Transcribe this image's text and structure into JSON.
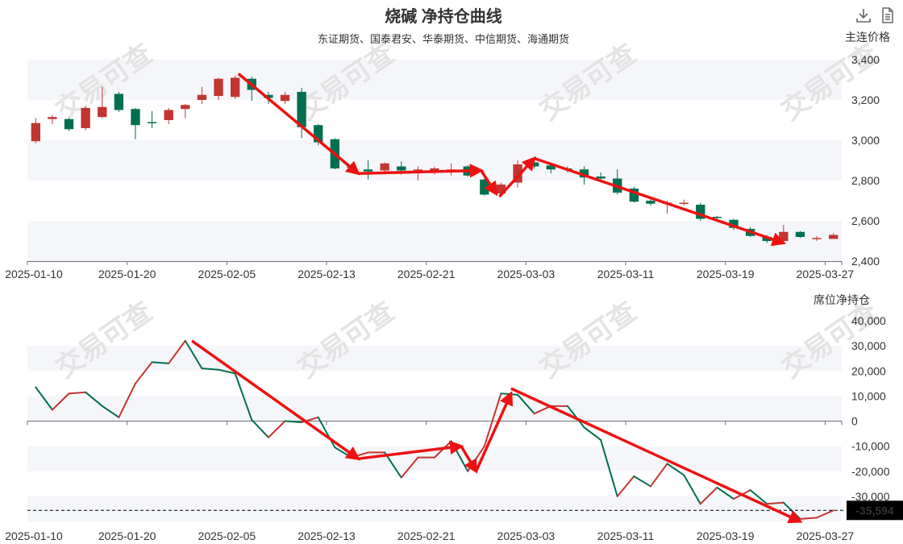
{
  "title": "烧碱 净持仓曲线",
  "subtitle": "东证期货、国泰君安、华泰期货、中信期货、海通期货",
  "toolbar": {
    "download_icon": "download-icon",
    "data_view_icon": "document-icon"
  },
  "watermark": "交易可查",
  "colors": {
    "up": "#c23531",
    "down": "#006f4f",
    "arrow": "#ee1111",
    "band": "#f5f6fa",
    "axis": "#6e7079",
    "netline_up": "#c23531",
    "netline_down": "#006f4f"
  },
  "chart_data": [
    {
      "type": "candlestick",
      "ylabel": "主连价格",
      "ylim": [
        2400,
        3400
      ],
      "yticks": [
        "2,400",
        "2,600",
        "2,800",
        "3,000",
        "3,200",
        "3,400"
      ],
      "x_tick_labels": [
        "2025-01-10",
        "2025-01-20",
        "2025-02-05",
        "2025-02-13",
        "2025-02-21",
        "2025-03-03",
        "2025-03-11",
        "2025-03-19",
        "2025-03-27"
      ],
      "x_tick_index": [
        0,
        6,
        12,
        18,
        24,
        30,
        36,
        42,
        48
      ],
      "dates": [
        "2025-01-10",
        "2025-01-13",
        "2025-01-14",
        "2025-01-15",
        "2025-01-16",
        "2025-01-17",
        "2025-01-20",
        "2025-01-21",
        "2025-01-22",
        "2025-01-23",
        "2025-01-24",
        "2025-01-27",
        "2025-02-05",
        "2025-02-06",
        "2025-02-07",
        "2025-02-10",
        "2025-02-11",
        "2025-02-12",
        "2025-02-13",
        "2025-02-14",
        "2025-02-17",
        "2025-02-18",
        "2025-02-19",
        "2025-02-20",
        "2025-02-21",
        "2025-02-24",
        "2025-02-25",
        "2025-02-26",
        "2025-02-27",
        "2025-02-28",
        "2025-03-03",
        "2025-03-04",
        "2025-03-05",
        "2025-03-06",
        "2025-03-07",
        "2025-03-10",
        "2025-03-11",
        "2025-03-12",
        "2025-03-13",
        "2025-03-14",
        "2025-03-17",
        "2025-03-18",
        "2025-03-19",
        "2025-03-20",
        "2025-03-21",
        "2025-03-24",
        "2025-03-25",
        "2025-03-26",
        "2025-03-27"
      ],
      "ohlc": [
        [
          2995,
          3085,
          2985,
          3110
        ],
        [
          3105,
          3115,
          3080,
          3125
        ],
        [
          3105,
          3055,
          3045,
          3110
        ],
        [
          3060,
          3160,
          3050,
          3170
        ],
        [
          3115,
          3165,
          3110,
          3265
        ],
        [
          3230,
          3150,
          3140,
          3240
        ],
        [
          3155,
          3075,
          3005,
          3160
        ],
        [
          3090,
          3085,
          3060,
          3145
        ],
        [
          3100,
          3150,
          3080,
          3160
        ],
        [
          3155,
          3175,
          3110,
          3180
        ],
        [
          3200,
          3225,
          3180,
          3265
        ],
        [
          3220,
          3305,
          3200,
          3310
        ],
        [
          3215,
          3310,
          3205,
          3320
        ],
        [
          3305,
          3250,
          3195,
          3315
        ],
        [
          3225,
          3210,
          3180,
          3240
        ],
        [
          3195,
          3225,
          3180,
          3240
        ],
        [
          3240,
          3065,
          3010,
          3260
        ],
        [
          3075,
          2990,
          2975,
          3080
        ],
        [
          3005,
          2860,
          2855,
          3010
        ],
        [
          2870,
          2865,
          2845,
          2885
        ],
        [
          2855,
          2845,
          2805,
          2900
        ],
        [
          2850,
          2885,
          2840,
          2890
        ],
        [
          2870,
          2850,
          2830,
          2895
        ],
        [
          2850,
          2855,
          2800,
          2870
        ],
        [
          2850,
          2860,
          2830,
          2870
        ],
        [
          2850,
          2855,
          2825,
          2885
        ],
        [
          2870,
          2825,
          2820,
          2875
        ],
        [
          2805,
          2730,
          2725,
          2810
        ],
        [
          2735,
          2780,
          2730,
          2790
        ],
        [
          2790,
          2880,
          2765,
          2900
        ],
        [
          2890,
          2870,
          2860,
          2900
        ],
        [
          2875,
          2855,
          2835,
          2890
        ],
        [
          2860,
          2855,
          2840,
          2870
        ],
        [
          2855,
          2815,
          2780,
          2870
        ],
        [
          2820,
          2810,
          2800,
          2840
        ],
        [
          2810,
          2740,
          2730,
          2855
        ],
        [
          2760,
          2695,
          2690,
          2770
        ],
        [
          2700,
          2685,
          2675,
          2710
        ],
        [
          2685,
          2690,
          2635,
          2700
        ],
        [
          2690,
          2690,
          2675,
          2705
        ],
        [
          2680,
          2610,
          2600,
          2690
        ],
        [
          2620,
          2615,
          2610,
          2625
        ],
        [
          2605,
          2565,
          2555,
          2610
        ],
        [
          2560,
          2525,
          2520,
          2570
        ],
        [
          2520,
          2500,
          2490,
          2530
        ],
        [
          2500,
          2545,
          2490,
          2580
        ],
        [
          2545,
          2520,
          2515,
          2550
        ],
        [
          2510,
          2515,
          2500,
          2525
        ],
        [
          2510,
          2530,
          2510,
          2540
        ]
      ]
    },
    {
      "type": "line",
      "ylabel": "席位净持仓",
      "ylim": [
        -40000,
        40000
      ],
      "yticks": [
        "-30,000",
        "-20,000",
        "-10,000",
        "0",
        "10,000",
        "20,000",
        "30,000",
        "40,000"
      ],
      "x_tick_labels": [
        "2025-01-10",
        "2025-01-20",
        "2025-02-05",
        "2025-02-13",
        "2025-02-21",
        "2025-03-03",
        "2025-03-11",
        "2025-03-19",
        "2025-03-27"
      ],
      "x_tick_index": [
        0,
        6,
        12,
        18,
        24,
        30,
        36,
        42,
        48
      ],
      "values": [
        13500,
        4500,
        11000,
        11500,
        6000,
        1500,
        15000,
        23500,
        23000,
        32000,
        21000,
        20500,
        19000,
        500,
        -6500,
        0,
        -500,
        1500,
        -10500,
        -14500,
        -12500,
        -12500,
        -22500,
        -14500,
        -14500,
        -8000,
        -20000,
        -10000,
        11000,
        10500,
        3000,
        6000,
        6000,
        -2500,
        -7500,
        -30000,
        -22000,
        -26000,
        -17000,
        -21500,
        -33000,
        -26500,
        -31000,
        -27500,
        -33000,
        -32500,
        -39000,
        -38500,
        -35594
      ],
      "last_value_label": "-35,594",
      "last_value": -35594
    }
  ]
}
